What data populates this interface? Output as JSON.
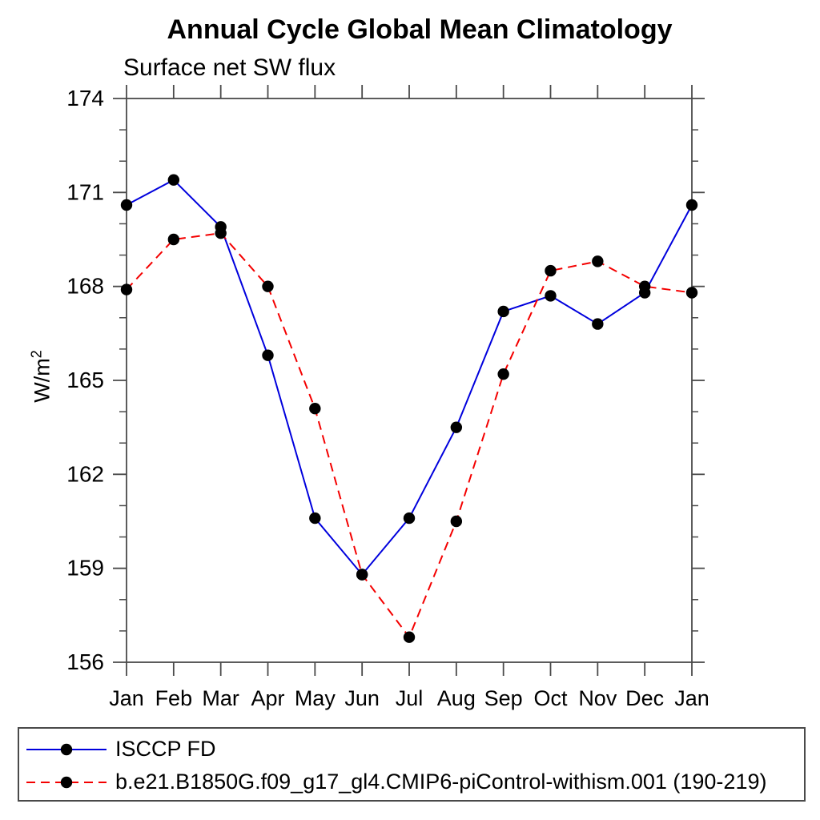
{
  "page": {
    "title": "Annual Cycle Global Mean Climatology",
    "subtitle": "Surface net SW flux"
  },
  "y_axis": {
    "label": "W/m²",
    "label_base": "W/m",
    "label_exp": "2"
  },
  "chart_data": {
    "type": "line",
    "title": "Annual Cycle Global Mean Climatology",
    "subtitle": "Surface net SW flux",
    "xlabel": "",
    "ylabel": "W/m²",
    "categories": [
      "Jan",
      "Feb",
      "Mar",
      "Apr",
      "May",
      "Jun",
      "Jul",
      "Aug",
      "Sep",
      "Oct",
      "Nov",
      "Dec",
      "Jan"
    ],
    "ylim": [
      156,
      174
    ],
    "yticks_major": [
      156,
      159,
      162,
      165,
      168,
      171,
      174
    ],
    "ytick_minor_step": 1,
    "grid": false,
    "legend_position": "bottom",
    "marker_color": "#000000",
    "axis_color": "#4a4a4a",
    "series": [
      {
        "name": "ISCCP FD",
        "color": "#0000dd",
        "style": "solid",
        "marker": "circle",
        "values": [
          170.6,
          171.4,
          169.9,
          165.8,
          160.6,
          158.8,
          160.6,
          163.5,
          167.2,
          167.7,
          166.8,
          167.8,
          170.6
        ]
      },
      {
        "name": "b.e21.B1850G.f09_g17_gl4.CMIP6-piControl-withism.001 (190-219)",
        "color": "#f40000",
        "style": "dashed",
        "marker": "circle",
        "values": [
          167.9,
          169.5,
          169.7,
          168.0,
          164.1,
          158.8,
          156.8,
          160.5,
          165.2,
          168.5,
          168.8,
          168.0,
          167.8
        ]
      }
    ]
  }
}
